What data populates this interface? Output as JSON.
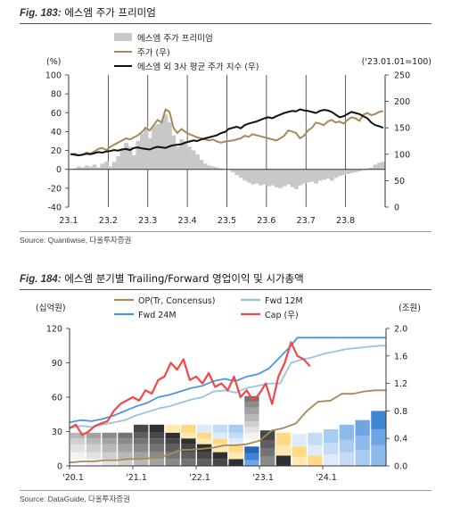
{
  "fig1": {
    "label": "Fig. 183:",
    "title": "에스엠 주가 프리미엄",
    "source": "Source: Quantiwise, 다올투자증권"
  },
  "fig2": {
    "label": "Fig. 184:",
    "title": "에스엠 분기별 Trailing/Forward 영업이익 및 시가총액",
    "source": "Source: DataGuide, 다올투자증권"
  },
  "chart_data": [
    {
      "type": "line",
      "title": "에스엠 주가 프리미엄",
      "left_unit": "(%)",
      "right_unit": "('23.01.01=100)",
      "ylim_left": [
        -40,
        100
      ],
      "ylim_right": [
        0,
        250
      ],
      "yticks_left": [
        "100",
        "80",
        "60",
        "40",
        "20",
        "0",
        "-20",
        "-40"
      ],
      "yticks_right": [
        "250",
        "200",
        "150",
        "100",
        "50",
        "0"
      ],
      "x_categories": [
        "23.1",
        "23.2",
        "23.3",
        "23.4",
        "23.5",
        "23.6",
        "23.7",
        "23.8"
      ],
      "legend": [
        "에스엠 주가 프리미엄",
        "주가 (우)",
        "에스엠 외 3사 평균 주가 지수 (우)"
      ],
      "colors": {
        "premium": "#c8c8c8",
        "price": "#a58a5a",
        "peer": "#111111"
      },
      "x": [
        0,
        0.1,
        0.2,
        0.3,
        0.4,
        0.5,
        0.6,
        0.7,
        0.8,
        0.9,
        1.0,
        1.1,
        1.2,
        1.3,
        1.4,
        1.5,
        1.6,
        1.7,
        1.8,
        1.9,
        2.0,
        2.1,
        2.2,
        2.3,
        2.4,
        2.5,
        2.6,
        2.7,
        2.8,
        2.9,
        3.0,
        3.1,
        3.2,
        3.3,
        3.4,
        3.5,
        3.6,
        3.7,
        3.8,
        3.9,
        4.0,
        4.1,
        4.2,
        4.3,
        4.4,
        4.5,
        4.6,
        4.7,
        4.8,
        4.9,
        5.0,
        5.1,
        5.2,
        5.3,
        5.4,
        5.5,
        5.6,
        5.7,
        5.8,
        5.9,
        6.0,
        6.1,
        6.2,
        6.3,
        6.4,
        6.5,
        6.6,
        6.7,
        6.8,
        6.9,
        7.0,
        7.1,
        7.2,
        7.3,
        7.4,
        7.5,
        7.6,
        7.7,
        7.8,
        7.9
      ],
      "series": [
        {
          "name": "에스엠 주가 프리미엄",
          "axis": "left",
          "type": "area",
          "values": [
            0,
            1,
            3,
            2,
            4,
            3,
            5,
            2,
            6,
            8,
            3,
            8,
            14,
            22,
            28,
            24,
            15,
            30,
            38,
            45,
            33,
            46,
            48,
            52,
            58,
            50,
            36,
            24,
            32,
            30,
            24,
            20,
            16,
            10,
            6,
            4,
            3,
            2,
            1,
            0,
            -1,
            -3,
            -6,
            -9,
            -12,
            -14,
            -16,
            -15,
            -17,
            -16,
            -18,
            -17,
            -19,
            -20,
            -18,
            -16,
            -19,
            -21,
            -17,
            -15,
            -14,
            -13,
            -15,
            -12,
            -11,
            -10,
            -12,
            -9,
            -7,
            -6,
            -5,
            -4,
            -3,
            -2,
            -1,
            1,
            2,
            5,
            7,
            8
          ]
        },
        {
          "name": "주가 (우)",
          "axis": "right",
          "type": "line",
          "values": [
            100,
            101,
            98,
            99,
            103,
            101,
            105,
            110,
            112,
            108,
            114,
            118,
            122,
            126,
            130,
            128,
            132,
            136,
            142,
            150,
            145,
            155,
            165,
            160,
            185,
            180,
            150,
            140,
            148,
            142,
            138,
            135,
            132,
            130,
            128,
            126,
            128,
            124,
            122,
            124,
            125,
            126,
            128,
            130,
            135,
            133,
            138,
            136,
            134,
            132,
            130,
            128,
            126,
            130,
            135,
            145,
            143,
            140,
            130,
            135,
            145,
            150,
            160,
            158,
            155,
            162,
            165,
            160,
            162,
            158,
            165,
            170,
            168,
            163,
            175,
            178,
            174,
            176,
            180,
            182
          ]
        },
        {
          "name": "에스엠 외 3사 평균 주가 지수 (우)",
          "axis": "right",
          "type": "line",
          "values": [
            100,
            99,
            98,
            99,
            101,
            100,
            102,
            104,
            103,
            105,
            106,
            108,
            107,
            109,
            110,
            108,
            112,
            113,
            111,
            110,
            109,
            112,
            114,
            113,
            112,
            115,
            117,
            118,
            119,
            122,
            124,
            126,
            125,
            128,
            130,
            132,
            134,
            136,
            140,
            142,
            148,
            150,
            152,
            149,
            155,
            158,
            160,
            162,
            165,
            168,
            170,
            168,
            172,
            175,
            178,
            180,
            182,
            181,
            185,
            183,
            182,
            180,
            178,
            182,
            184,
            183,
            180,
            175,
            170,
            172,
            176,
            180,
            178,
            176,
            172,
            168,
            160,
            155,
            153,
            150
          ]
        }
      ]
    },
    {
      "type": "bar",
      "title": "에스엠 분기별 Trailing/Forward 영업이익 및 시가총액",
      "left_unit": "(십억원)",
      "right_unit": "(조원)",
      "ylim_left": [
        0,
        120
      ],
      "ylim_right": [
        0,
        2.0
      ],
      "yticks_left": [
        "120",
        "90",
        "60",
        "30",
        "0"
      ],
      "yticks_right": [
        "2.0",
        "1.6",
        "1.2",
        "0.8",
        "0.4",
        "0.0"
      ],
      "x_labels": [
        "'20.1",
        "'21.1",
        "'22.1",
        "'23.1",
        "'24.1"
      ],
      "legend": [
        "OP(Tr, Concensus)",
        "Fwd 12M",
        "Fwd 24M",
        "Cap (우)"
      ],
      "colors": {
        "op": "#a58a5a",
        "fwd12": "#9cc0e6",
        "fwd24": "#4f95db",
        "cap": "#f04848"
      },
      "bar_colors": [
        "#ffffff",
        "#f3f3f3",
        "#e2e2e2",
        "#cfcfcf",
        "#b8b8b8",
        "#a2a2a2",
        "#8a8a8a",
        "#747474",
        "#5e5e5e",
        "#474747",
        "#303030",
        "#ffe9b0",
        "#ffd984",
        "#deebfa",
        "#c3dbf5",
        "#a8cbf0",
        "#8dbaea",
        "#6ea6e3",
        "#3f86d2",
        "#2566b7"
      ],
      "bar_series": [
        [
          6,
          6,
          6,
          6,
          6,
          6,
          6,
          6,
          6,
          6,
          6,
          0,
          0,
          0,
          0,
          0,
          0,
          0,
          0,
          0
        ],
        [
          6,
          6,
          6,
          6,
          6,
          6,
          6,
          6,
          6,
          6,
          6,
          0,
          0,
          0,
          0,
          0,
          0,
          0,
          0,
          0
        ],
        [
          7,
          7,
          7,
          7,
          7,
          7,
          7,
          7,
          7,
          7,
          7,
          0,
          0,
          0,
          0,
          0,
          0,
          0,
          0,
          0
        ],
        [
          5,
          5,
          5,
          5,
          5,
          5,
          5,
          5,
          5,
          5,
          5,
          0,
          0,
          0,
          0,
          0,
          0,
          0,
          0,
          0
        ],
        [
          5,
          5,
          5,
          5,
          5,
          5,
          5,
          5,
          5,
          5,
          5,
          0,
          0,
          0,
          0,
          0,
          0,
          0,
          0,
          0
        ],
        [
          0,
          0,
          0,
          0,
          7,
          7,
          7,
          7,
          7,
          7,
          7,
          0,
          0,
          0,
          0,
          0,
          0,
          0,
          0,
          0
        ],
        [
          0,
          0,
          0,
          0,
          0,
          0,
          0,
          0,
          0,
          0,
          0,
          5,
          0,
          0,
          0,
          0,
          0,
          0,
          0,
          0
        ],
        [
          0,
          0,
          0,
          0,
          0,
          0,
          0,
          0,
          0,
          0,
          0,
          6,
          0,
          0,
          0,
          0,
          0,
          0,
          0,
          0
        ],
        [
          0,
          0,
          0,
          0,
          0,
          0,
          0,
          0,
          0,
          0,
          0,
          6,
          0,
          0,
          0,
          0,
          0,
          0,
          0,
          0
        ],
        [
          0,
          0,
          0,
          0,
          0,
          0,
          0,
          0,
          0,
          0,
          0,
          6,
          0,
          0,
          0,
          0,
          0,
          0,
          0,
          0
        ],
        [
          0,
          0,
          0,
          0,
          0,
          0,
          0,
          0,
          0,
          0,
          0,
          6,
          0,
          0,
          0,
          0,
          0,
          0,
          0,
          0
        ],
        [
          0,
          0,
          0,
          0,
          0,
          0,
          0,
          0,
          0,
          0,
          0,
          5,
          0,
          0,
          0,
          0,
          0,
          0,
          0,
          0
        ],
        [
          0,
          0,
          0,
          0,
          0,
          0,
          0,
          0,
          0,
          0,
          0,
          5,
          0,
          0,
          0,
          0,
          0,
          0,
          0,
          0
        ],
        [
          0,
          0,
          0,
          0,
          0,
          0,
          0,
          0,
          0,
          0,
          0,
          6,
          0,
          0,
          0,
          0,
          0,
          0,
          0,
          0
        ],
        [
          0,
          0,
          0,
          0,
          0,
          0,
          0,
          0,
          0,
          0,
          0,
          6,
          8,
          0,
          0,
          0,
          0,
          0,
          0,
          0
        ],
        [
          0,
          0,
          0,
          0,
          0,
          0,
          0,
          0,
          0,
          0,
          0,
          5,
          7,
          0,
          0,
          0,
          0,
          0,
          0,
          0
        ],
        [
          0,
          0,
          0,
          0,
          0,
          0,
          0,
          0,
          0,
          0,
          0,
          5,
          7,
          0,
          0,
          0,
          0,
          0,
          0,
          0
        ],
        [
          0,
          0,
          0,
          0,
          0,
          0,
          0,
          0,
          0,
          0,
          0,
          0,
          9,
          9,
          8,
          9,
          10,
          12,
          14,
          18
        ],
        [
          0,
          0,
          0,
          0,
          0,
          0,
          0,
          0,
          0,
          0,
          0,
          0,
          0,
          9,
          9,
          9,
          10,
          11,
          12,
          14
        ],
        [
          0,
          0,
          0,
          0,
          0,
          0,
          0,
          0,
          0,
          0,
          0,
          0,
          0,
          11,
          11,
          11,
          12,
          13,
          14,
          16
        ]
      ],
      "x_quarters": [
        "'20.1",
        "'20.2",
        "'20.3",
        "'20.4",
        "'21.1",
        "'21.2",
        "'21.3",
        "'21.4",
        "'22.1",
        "'22.2",
        "'22.3",
        "'22.4",
        "'23.1",
        "'23.2",
        "'23.3",
        "'23.4",
        "'24.1",
        "'24.2",
        "'24.3",
        "'24.4"
      ],
      "series": [
        {
          "name": "OP(Tr, Concensus)",
          "axis": "left",
          "x": [
            0,
            0.9,
            1.6,
            2.2,
            3.0,
            3.7,
            4.5,
            5.3,
            6.1,
            7.0,
            7.6,
            8.4,
            9.1,
            9.8,
            10.5,
            11.2,
            12.0,
            12.8,
            13.5,
            14.3,
            15.0,
            15.7,
            16.5,
            17.2,
            17.9,
            18.6,
            19.3,
            20.0
          ],
          "values": [
            3,
            4,
            4,
            5,
            5,
            6,
            6,
            7,
            9,
            14,
            14,
            15,
            16,
            18,
            18,
            19,
            22,
            31,
            33,
            37,
            48,
            56,
            57,
            63,
            63,
            65,
            66,
            66
          ]
        },
        {
          "name": "Fwd 12M",
          "axis": "left",
          "x": [
            0,
            0.7,
            1.4,
            2.1,
            2.8,
            3.5,
            4.2,
            4.9,
            5.6,
            6.3,
            7.0,
            7.7,
            8.4,
            9.1,
            9.8,
            10.5,
            11.2,
            11.9,
            12.6,
            13.3,
            14.0,
            14.7,
            15.4,
            16.1,
            16.8,
            17.5,
            18.2,
            18.9,
            19.6,
            20.0
          ],
          "values": [
            33,
            35,
            34,
            36,
            38,
            40,
            44,
            47,
            50,
            52,
            55,
            58,
            60,
            65,
            66,
            64,
            68,
            70,
            72,
            72,
            90,
            93,
            95,
            98,
            100,
            102,
            103,
            104,
            105,
            105
          ]
        },
        {
          "name": "Fwd 24M",
          "axis": "left",
          "x": [
            0,
            0.7,
            1.4,
            2.1,
            2.8,
            3.5,
            4.2,
            4.9,
            5.6,
            6.3,
            7.0,
            7.7,
            8.4,
            9.1,
            9.8,
            10.5,
            11.2,
            11.9,
            12.6,
            13.3,
            14.0,
            14.4,
            14.8,
            15.2,
            16.0,
            17.0,
            18.0,
            19.0,
            20.0
          ],
          "values": [
            38,
            40,
            39,
            41,
            44,
            48,
            52,
            55,
            60,
            62,
            65,
            68,
            70,
            74,
            76,
            74,
            78,
            80,
            85,
            95,
            105,
            112,
            112,
            112,
            112,
            112,
            112,
            112,
            112
          ]
        },
        {
          "name": "Cap (우)",
          "axis": "right",
          "x": [
            0,
            0.4,
            0.8,
            1.2,
            1.6,
            2.0,
            2.4,
            2.8,
            3.2,
            3.6,
            4.0,
            4.4,
            4.8,
            5.2,
            5.6,
            6.0,
            6.4,
            6.8,
            7.2,
            7.6,
            8.0,
            8.4,
            8.8,
            9.2,
            9.6,
            10.0,
            10.4,
            10.8,
            11.2,
            11.6,
            12.0,
            12.4,
            12.8,
            13.2,
            13.6,
            14.0,
            14.4,
            14.8,
            15.2
          ],
          "values": [
            0.55,
            0.6,
            0.45,
            0.5,
            0.58,
            0.62,
            0.65,
            0.8,
            0.9,
            0.95,
            1.0,
            0.95,
            1.1,
            1.05,
            1.25,
            1.3,
            1.5,
            1.4,
            1.55,
            1.25,
            1.3,
            1.2,
            1.35,
            1.15,
            1.2,
            1.1,
            1.3,
            1.0,
            1.1,
            0.95,
            1.05,
            1.2,
            0.9,
            1.3,
            1.5,
            1.8,
            1.6,
            1.55,
            1.45
          ]
        }
      ]
    }
  ]
}
